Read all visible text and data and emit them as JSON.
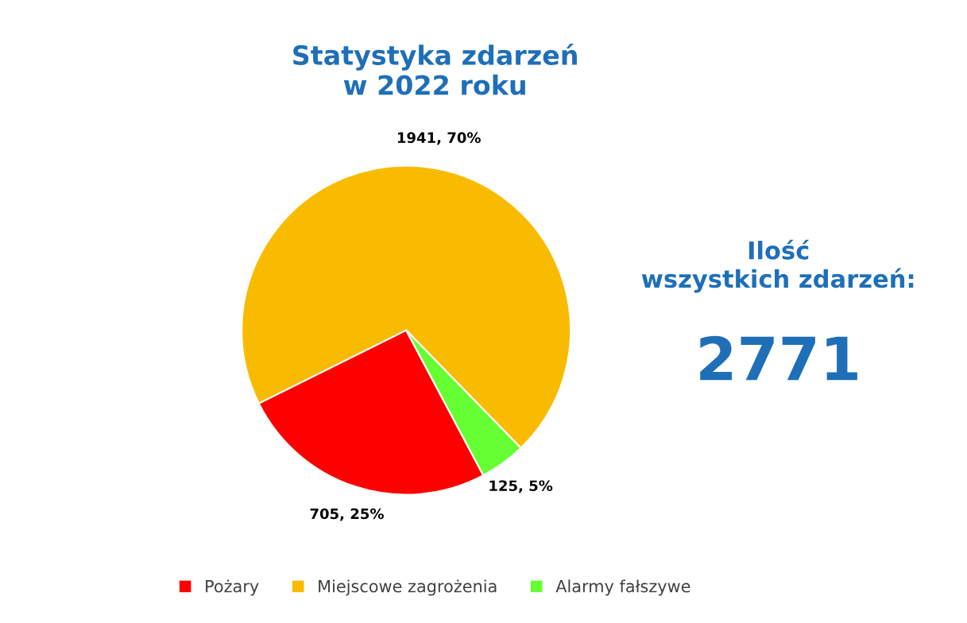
{
  "chart_data": {
    "type": "pie",
    "title": "Statystyka zdarzeń\nw 2022 roku",
    "categories": [
      "Pożary",
      "Miejscowe zagrożenia",
      "Alarmy fałszywe"
    ],
    "values": [
      705,
      1941,
      125
    ],
    "colors": [
      "#ff0000",
      "#f9bb00",
      "#66ff33"
    ],
    "value_labels": [
      "705, 25%",
      "1941, 70%",
      "125, 5%"
    ],
    "legend": "bottom",
    "annotations": [
      "Ilość\nwszystkich zdarzeń:",
      "2771"
    ]
  }
}
